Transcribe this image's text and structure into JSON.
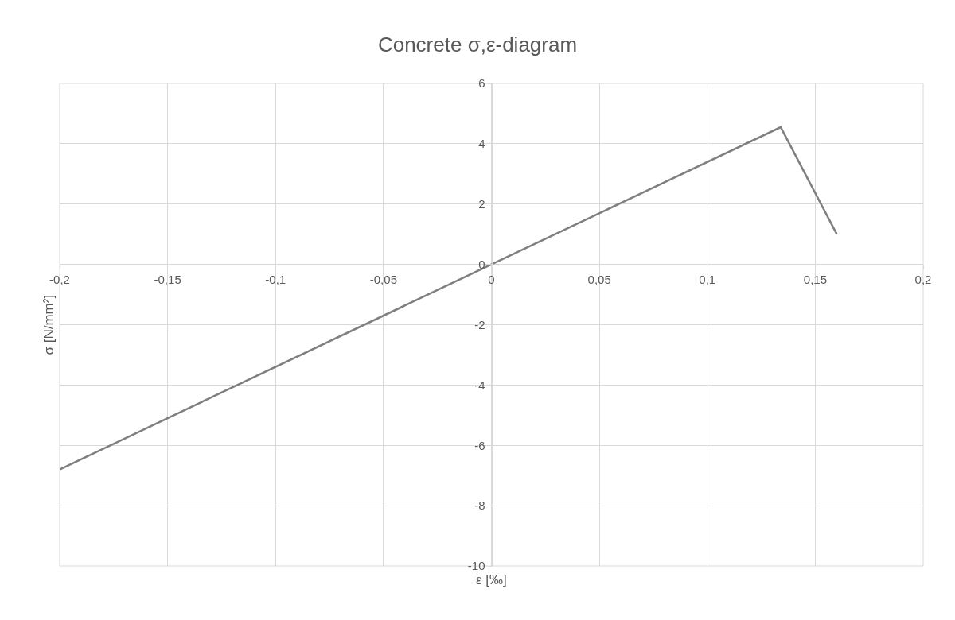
{
  "chart_data": {
    "type": "line",
    "title": "Concrete σ,ε-diagram",
    "xlabel": "ε [‰]",
    "ylabel": "σ [N/mm²]",
    "x": [
      -0.2,
      0,
      0.134,
      0.16
    ],
    "series": [
      {
        "color": "#7f7f7f",
        "values": [
          -6.8,
          0,
          4.55,
          1.0
        ]
      }
    ],
    "xlim": [
      -0.2,
      0.2
    ],
    "xticks": [
      {
        "value": -0.2,
        "label": "-0,2"
      },
      {
        "value": -0.15,
        "label": "-0,15"
      },
      {
        "value": -0.1,
        "label": "-0,1"
      },
      {
        "value": -0.05,
        "label": "-0,05"
      },
      0,
      {
        "value": 0.05,
        "label": "0,05"
      },
      {
        "value": 0.1,
        "label": "0,1"
      },
      {
        "value": 0.15,
        "label": "0,15"
      },
      {
        "value": 0.2,
        "label": "0,2"
      }
    ],
    "ylim": [
      -10,
      6
    ],
    "yticks": [
      -10,
      -8,
      -6,
      -4,
      -2,
      0,
      2,
      4,
      6
    ],
    "grid": true,
    "marker": "none",
    "line_style": "solid"
  }
}
